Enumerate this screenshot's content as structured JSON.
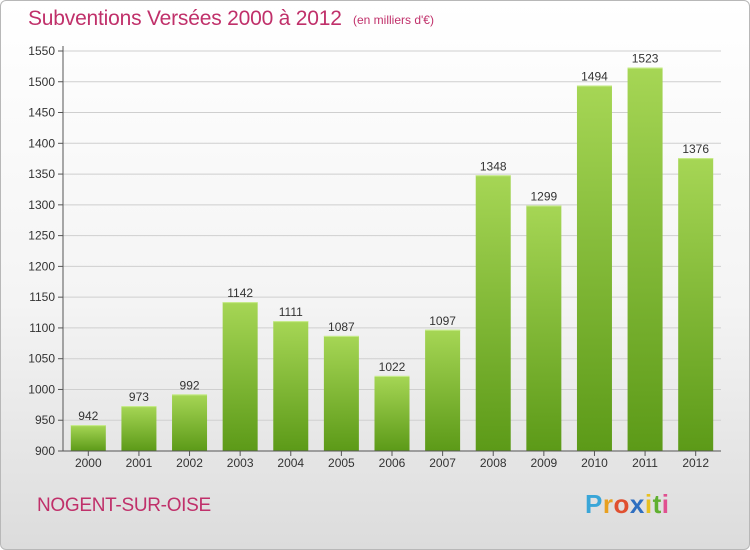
{
  "title": "Subventions Versées 2000 à 2012",
  "subtitle": "(en milliers d'€)",
  "commune": "NOGENT-SUR-OISE",
  "logo": {
    "letters": [
      "P",
      "r",
      "o",
      "x",
      "i",
      "t",
      "i"
    ],
    "colors": [
      "#3aa6d8",
      "#e8a020",
      "#e05030",
      "#2f6fc0",
      "#e8c020",
      "#60b030",
      "#e05090"
    ]
  },
  "colors": {
    "title": "#c0306a",
    "bar_light": "#a6d655",
    "bar_dark": "#5c9a18",
    "grid": "#cfcfcf"
  },
  "chart_data": {
    "type": "bar",
    "title": "Subventions Versées 2000 à 2012",
    "subtitle": "(en milliers d'€)",
    "xlabel": "",
    "ylabel": "",
    "categories": [
      "2000",
      "2001",
      "2002",
      "2003",
      "2004",
      "2005",
      "2006",
      "2007",
      "2008",
      "2009",
      "2010",
      "2011",
      "2012"
    ],
    "values": [
      942,
      973,
      992,
      1142,
      1111,
      1087,
      1022,
      1097,
      1348,
      1299,
      1494,
      1523,
      1376
    ],
    "ylim": [
      900,
      1550
    ],
    "yticks": [
      900,
      950,
      1000,
      1050,
      1100,
      1150,
      1200,
      1250,
      1300,
      1350,
      1400,
      1450,
      1500,
      1550
    ],
    "grid": true,
    "legend": "none"
  }
}
